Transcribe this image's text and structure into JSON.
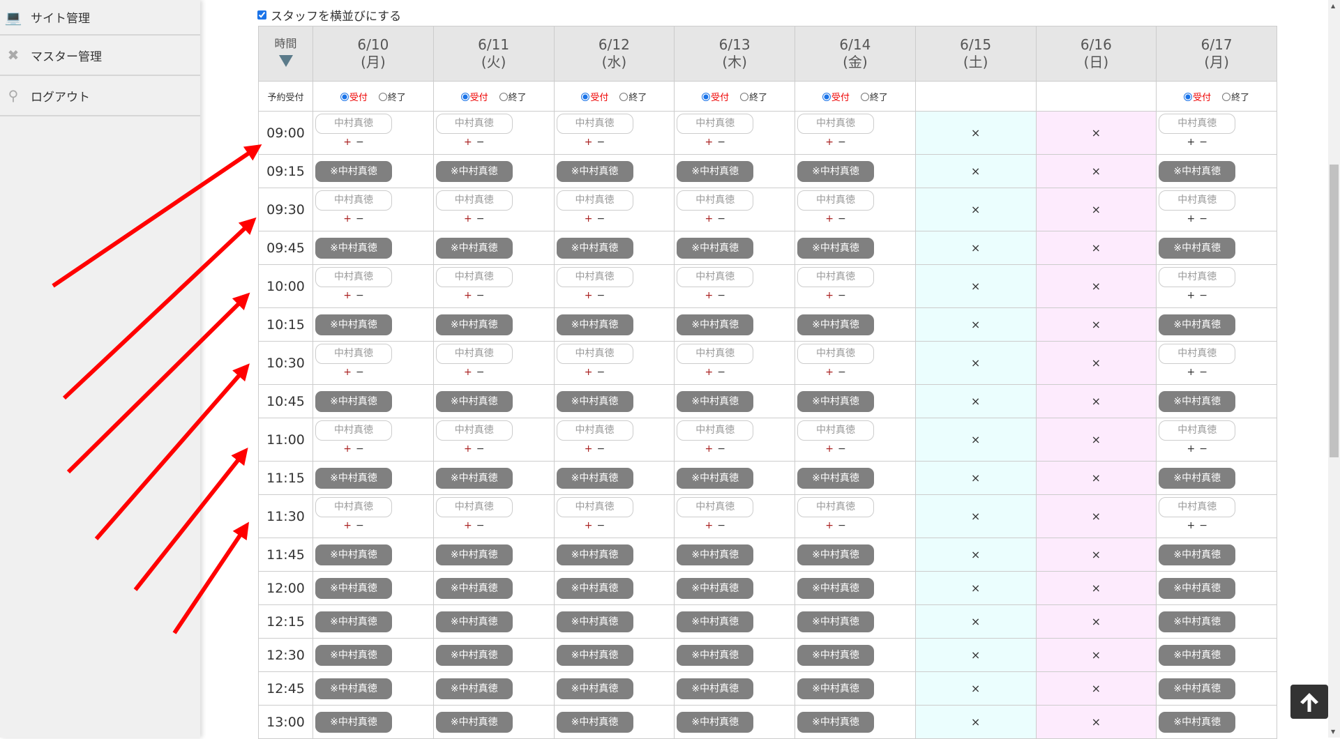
{
  "sidebar": {
    "items": [
      {
        "label": "サイト管理",
        "icon": "computer-icon"
      },
      {
        "label": "マスター管理",
        "icon": "tools-icon"
      },
      {
        "label": "ログアウト",
        "icon": "key-icon"
      }
    ]
  },
  "toggle": {
    "label": "スタッフを横並びにする",
    "checked": true
  },
  "table": {
    "time_header": "時間",
    "reception_label": "予約受付",
    "accept_label": "受付",
    "close_label": "終了",
    "staff_name": "中村真徳",
    "staff_button": "※中村真徳",
    "plus": "+",
    "minus": "−",
    "closed_mark": "×",
    "days": [
      {
        "date": "6/10",
        "weekday": "(月)",
        "type": "open",
        "reception": "受付"
      },
      {
        "date": "6/11",
        "weekday": "(火)",
        "type": "open",
        "reception": "受付"
      },
      {
        "date": "6/12",
        "weekday": "(水)",
        "type": "open",
        "reception": "受付"
      },
      {
        "date": "6/13",
        "weekday": "(木)",
        "type": "open",
        "reception": "受付"
      },
      {
        "date": "6/14",
        "weekday": "(金)",
        "type": "open",
        "reception": "受付"
      },
      {
        "date": "6/15",
        "weekday": "(土)",
        "type": "sat"
      },
      {
        "date": "6/16",
        "weekday": "(日)",
        "type": "sun"
      },
      {
        "date": "6/17",
        "weekday": "(月)",
        "type": "open",
        "reception": "受付"
      }
    ],
    "slots": [
      {
        "time": "09:00",
        "kind": "input"
      },
      {
        "time": "09:15",
        "kind": "button"
      },
      {
        "time": "09:30",
        "kind": "input"
      },
      {
        "time": "09:45",
        "kind": "button"
      },
      {
        "time": "10:00",
        "kind": "input"
      },
      {
        "time": "10:15",
        "kind": "button"
      },
      {
        "time": "10:30",
        "kind": "input"
      },
      {
        "time": "10:45",
        "kind": "button"
      },
      {
        "time": "11:00",
        "kind": "input"
      },
      {
        "time": "11:15",
        "kind": "button"
      },
      {
        "time": "11:30",
        "kind": "input"
      },
      {
        "time": "11:45",
        "kind": "button"
      },
      {
        "time": "12:00",
        "kind": "button"
      },
      {
        "time": "12:15",
        "kind": "button"
      },
      {
        "time": "12:30",
        "kind": "button"
      },
      {
        "time": "12:45",
        "kind": "button"
      },
      {
        "time": "13:00",
        "kind": "button"
      }
    ]
  },
  "colors": {
    "annotation_arrow": "#ff0000",
    "staff_button": "#808080",
    "saturday": "#ebfefe",
    "sunday": "#fdebfd"
  }
}
